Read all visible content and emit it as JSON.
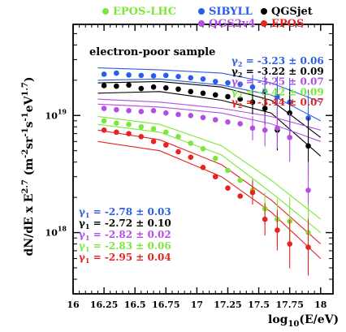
{
  "chart_data": {
    "type": "scatter",
    "title": "",
    "xlabel": "log10(E/eV)",
    "ylabel": "dN/dE x E^2.7 (m^-2 sr^-1 s^-1 eV^1.7)",
    "xlim": [
      16,
      18.1
    ],
    "ylim": [
      3e+17,
      6e+19
    ],
    "yscale": "log",
    "x_ticks": [
      "16",
      "16.25",
      "16.5",
      "16.75",
      "17",
      "17.25",
      "17.5",
      "17.75",
      "18"
    ],
    "y_ticks": [
      "10^18",
      "10^19"
    ],
    "annotation": "electron-poor sample",
    "x": [
      16.25,
      16.35,
      16.45,
      16.55,
      16.65,
      16.75,
      16.85,
      16.95,
      17.05,
      17.15,
      17.25,
      17.35,
      17.45,
      17.55,
      17.65,
      17.75,
      17.9
    ],
    "series": [
      {
        "name": "SIBYLL",
        "color": "#2a5ee6",
        "values": [
          2.25e+19,
          2.3e+19,
          2.22e+19,
          2.2e+19,
          2.18e+19,
          2.2e+19,
          2.15e+19,
          2.1e+19,
          2.05e+19,
          1.95e+19,
          1.9e+19,
          1.85e+19,
          1.75e+19,
          1.6e+19,
          1.45e+19,
          1.3e+19,
          9.5e+18
        ],
        "model": [
          [
            16.2,
            2e+19
          ],
          [
            16.7,
            2.05e+19
          ],
          [
            17.2,
            1.82e+19
          ],
          [
            17.6,
            1.5e+19
          ],
          [
            18.0,
            9e+18
          ]
        ],
        "model_upper": [
          [
            16.2,
            2.55e+19
          ],
          [
            16.7,
            2.45e+19
          ],
          [
            17.2,
            2.3e+19
          ],
          [
            17.6,
            1.9e+19
          ],
          [
            18.0,
            1.3e+19
          ]
        ],
        "gamma2": "-3.23 ± 0.06",
        "gamma1": "-2.78 ± 0.03"
      },
      {
        "name": "QGSjet",
        "color": "#000000",
        "values": [
          1.8e+19,
          1.78e+19,
          1.82e+19,
          1.7e+19,
          1.75e+19,
          1.72e+19,
          1.68e+19,
          1.6e+19,
          1.55e+19,
          1.5e+19,
          1.45e+19,
          1.38e+19,
          1.3e+19,
          1.15e+19,
          7.5e+18,
          1.05e+19,
          5.5e+18
        ],
        "model": [
          [
            16.2,
            1.55e+19
          ],
          [
            16.7,
            1.6e+19
          ],
          [
            17.2,
            1.35e+19
          ],
          [
            17.6,
            1.05e+19
          ],
          [
            18.0,
            4.5e+18
          ]
        ],
        "model_upper": [
          [
            16.2,
            1.9e+19
          ],
          [
            16.7,
            1.95e+19
          ],
          [
            17.2,
            1.75e+19
          ],
          [
            17.6,
            1.35e+19
          ],
          [
            18.0,
            6.5e+18
          ]
        ],
        "gamma2": "-3.22 ± 0.09",
        "gamma1": "-2.72 ± 0.10"
      },
      {
        "name": "QGS2v4",
        "color": "#b24ee6",
        "values": [
          1.15e+19,
          1.12e+19,
          1.1e+19,
          1.08e+19,
          1.1e+19,
          1.05e+19,
          1.02e+19,
          1e+19,
          9.6e+18,
          9.2e+18,
          8.8e+18,
          8.5e+18,
          7.8e+18,
          7.5e+18,
          7.8e+18,
          6.5e+18,
          2.3e+18
        ],
        "model": [
          [
            16.2,
            1.25e+19
          ],
          [
            16.7,
            1.18e+19
          ],
          [
            17.2,
            1.05e+19
          ],
          [
            17.6,
            8.5e+18
          ],
          [
            18.0,
            6e+18
          ]
        ],
        "model_upper": [
          [
            16.2,
            1.38e+19
          ],
          [
            16.7,
            1.3e+19
          ],
          [
            17.2,
            1.15e+19
          ],
          [
            17.6,
            9.8e+18
          ],
          [
            18.0,
            7.5e+18
          ]
        ],
        "gamma2": "-3.25 ± 0.07",
        "gamma1": "-2.82 ± 0.02"
      },
      {
        "name": "EPOS-LHC",
        "color": "#7ee63a",
        "values": [
          9e+18,
          8.6e+18,
          8.4e+18,
          8e+18,
          7.7e+18,
          7.2e+18,
          6.6e+18,
          5.8e+18,
          5.2e+18,
          4.3e+18,
          3.4e+18,
          2.8e+18,
          2.3e+18,
          1.6e+18,
          1.3e+18,
          1.25e+18,
          1e+18
        ],
        "model": [
          [
            16.2,
            8.4e+18
          ],
          [
            16.7,
            7.2e+18
          ],
          [
            17.2,
            4.6e+18
          ],
          [
            17.6,
            2.2e+18
          ],
          [
            18.0,
            1e+18
          ]
        ],
        "model_upper": [
          [
            16.2,
            9.8e+18
          ],
          [
            16.7,
            8.4e+18
          ],
          [
            17.2,
            5.5e+18
          ],
          [
            17.6,
            2.8e+18
          ],
          [
            18.0,
            1.3e+18
          ]
        ],
        "gamma2": "-3.42 ± 0.09",
        "gamma1": "-2.83 ± 0.06"
      },
      {
        "name": "EPOS",
        "color": "#e62222",
        "values": [
          7.5e+18,
          7.2e+18,
          7e+18,
          6.6e+18,
          6e+18,
          5.6e+18,
          4.9e+18,
          4.4e+18,
          3.6e+18,
          3e+18,
          2.4e+18,
          2.05e+18,
          2.2e+18,
          1.3e+18,
          1.05e+18,
          8e+17,
          7.5e+17
        ],
        "model": [
          [
            16.2,
            6e+18
          ],
          [
            16.7,
            5e+18
          ],
          [
            17.2,
            3e+18
          ],
          [
            17.6,
            1.5e+18
          ],
          [
            18.0,
            6e+17
          ]
        ],
        "model_upper": [
          [
            16.2,
            7.5e+18
          ],
          [
            16.7,
            6.2e+18
          ],
          [
            17.2,
            3.8e+18
          ],
          [
            17.6,
            1.9e+18
          ],
          [
            18.0,
            8e+17
          ]
        ],
        "gamma2": "-3.44 ± 0.07",
        "gamma1": "-2.95 ± 0.04"
      }
    ],
    "legend": [
      {
        "label": "EPOS-LHC",
        "color": "#7ee63a"
      },
      {
        "label": "SIBYLL",
        "color": "#2a5ee6"
      },
      {
        "label": "QGSjet",
        "color": "#000000"
      },
      {
        "label": "QGS2v4",
        "color": "#b24ee6"
      },
      {
        "label": "EPOS",
        "color": "#e62222"
      }
    ],
    "legend_placement": "top",
    "grid": false
  }
}
